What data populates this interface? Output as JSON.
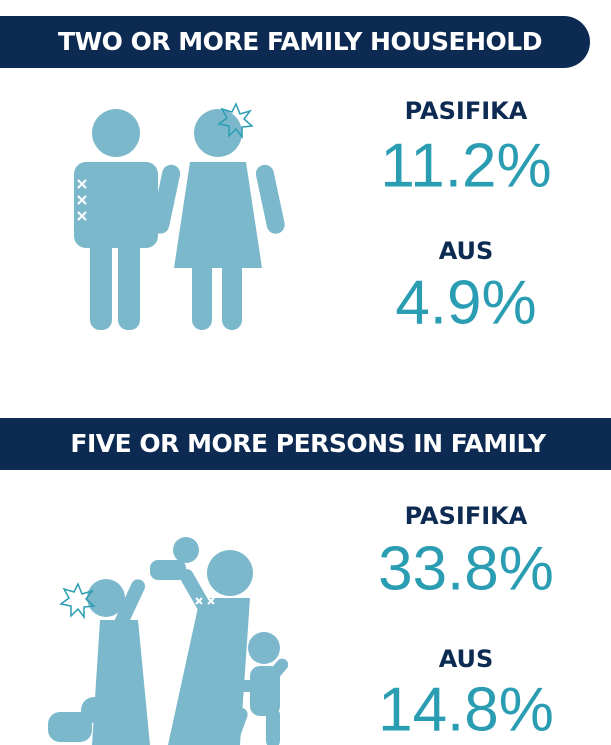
{
  "sections": [
    {
      "title": "TWO OR MORE FAMILY HOUSEHOLD",
      "stats": [
        {
          "label": "PASIFIKA",
          "value": "11.2%"
        },
        {
          "label": "AUS",
          "value": "4.9%"
        }
      ]
    },
    {
      "title": "FIVE OR MORE PERSONS IN FAMILY",
      "stats": [
        {
          "label": "PASIFIKA",
          "value": "33.8%"
        },
        {
          "label": "AUS",
          "value": "14.8%"
        }
      ]
    }
  ]
}
